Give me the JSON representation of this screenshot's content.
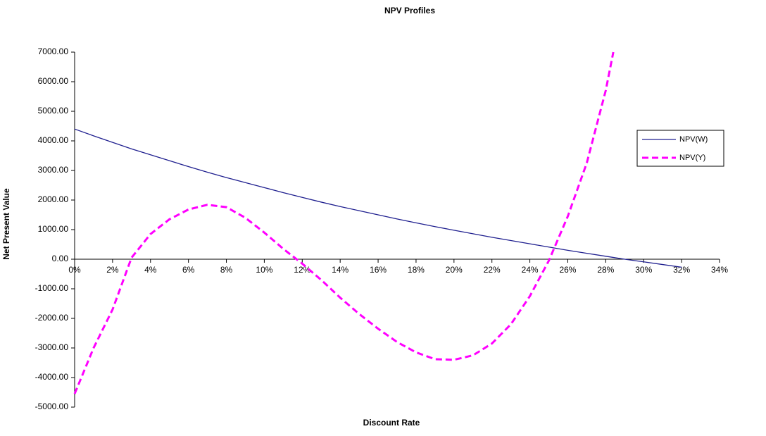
{
  "chart_data": {
    "type": "line",
    "title": "NPV Profiles",
    "x_label": "Discount Rate",
    "y_label": "Net Present Value",
    "xlim": [
      0,
      34
    ],
    "xticks": [
      {
        "value": 0,
        "label": "0%"
      },
      {
        "value": 2,
        "label": "2%"
      },
      {
        "value": 4,
        "label": "4%"
      },
      {
        "value": 6,
        "label": "6%"
      },
      {
        "value": 8,
        "label": "8%"
      },
      {
        "value": 10,
        "label": "10%"
      },
      {
        "value": 12,
        "label": "12%"
      },
      {
        "value": 14,
        "label": "14%"
      },
      {
        "value": 16,
        "label": "16%"
      },
      {
        "value": 18,
        "label": "18%"
      },
      {
        "value": 20,
        "label": "20%"
      },
      {
        "value": 22,
        "label": "22%"
      },
      {
        "value": 24,
        "label": "24%"
      },
      {
        "value": 26,
        "label": "26%"
      },
      {
        "value": 28,
        "label": "28%"
      },
      {
        "value": 30,
        "label": "30%"
      },
      {
        "value": 32,
        "label": "32%"
      },
      {
        "value": 34,
        "label": "34%"
      }
    ],
    "ylim": [
      -5000,
      7000
    ],
    "yticks": [
      {
        "value": -5000,
        "label": "-5000.00"
      },
      {
        "value": -4000,
        "label": "-4000.00"
      },
      {
        "value": -3000,
        "label": "-3000.00"
      },
      {
        "value": -2000,
        "label": "-2000.00"
      },
      {
        "value": -1000,
        "label": "-1000.00"
      },
      {
        "value": 0,
        "label": "0.00"
      },
      {
        "value": 1000,
        "label": "1000.00"
      },
      {
        "value": 2000,
        "label": "2000.00"
      },
      {
        "value": 3000,
        "label": "3000.00"
      },
      {
        "value": 4000,
        "label": "4000.00"
      },
      {
        "value": 5000,
        "label": "5000.00"
      },
      {
        "value": 6000,
        "label": "6000.00"
      },
      {
        "value": 7000,
        "label": "7000.00"
      }
    ],
    "legend_position": "right",
    "series": [
      {
        "name": "NPV(W)",
        "color": "#1f1f8f",
        "dash": false,
        "x": [
          0,
          1,
          2,
          3,
          4,
          5,
          6,
          7,
          8,
          9,
          10,
          11,
          12,
          13,
          14,
          15,
          16,
          17,
          18,
          19,
          20,
          21,
          22,
          23,
          24,
          25,
          26,
          27,
          28,
          29,
          30,
          31,
          32
        ],
        "values": [
          4400,
          4170,
          3950,
          3730,
          3530,
          3330,
          3130,
          2940,
          2760,
          2590,
          2420,
          2250,
          2090,
          1930,
          1780,
          1640,
          1500,
          1360,
          1230,
          1100,
          980,
          860,
          740,
          630,
          520,
          410,
          300,
          200,
          100,
          0,
          -90,
          -180,
          -270
        ]
      },
      {
        "name": "NPV(Y)",
        "color": "#ff00ff",
        "dash": true,
        "x": [
          0,
          1,
          2,
          3,
          4,
          5,
          6,
          7,
          8,
          9,
          10,
          11,
          12,
          13,
          14,
          15,
          16,
          17,
          18,
          19,
          20,
          21,
          22,
          23,
          24,
          25,
          26,
          27,
          28,
          28.4
        ],
        "values": [
          -4550,
          -3000,
          -1700,
          50,
          850,
          1350,
          1680,
          1840,
          1760,
          1400,
          900,
          350,
          -150,
          -700,
          -1300,
          -1850,
          -2350,
          -2800,
          -3150,
          -3380,
          -3400,
          -3250,
          -2850,
          -2200,
          -1250,
          -50,
          1450,
          3250,
          5700,
          7000
        ]
      }
    ]
  }
}
